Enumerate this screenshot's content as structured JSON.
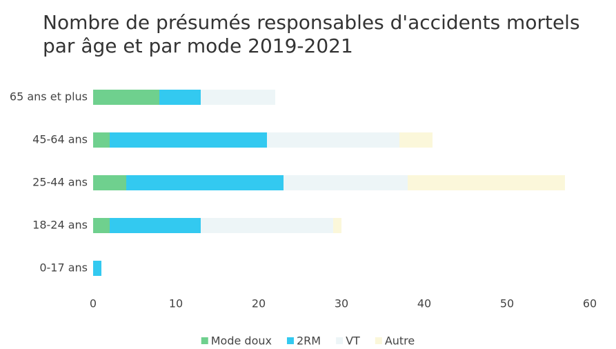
{
  "chart_data": {
    "type": "bar",
    "orientation": "horizontal",
    "stacked": true,
    "title": "Nombre de présumés responsables d'accidents mortels par âge et par mode 2019-2021",
    "categories": [
      "65 ans et plus",
      "45-64 ans",
      "25-44 ans",
      "18-24 ans",
      "0-17 ans"
    ],
    "series": [
      {
        "name": "Mode doux",
        "color": "#6fd08e",
        "values": [
          8,
          2,
          4,
          2,
          0
        ]
      },
      {
        "name": "2RM",
        "color": "#33c9f0",
        "values": [
          5,
          19,
          19,
          11,
          1
        ]
      },
      {
        "name": "VT",
        "color": "#edf5f7",
        "values": [
          9,
          16,
          15,
          16,
          0
        ]
      },
      {
        "name": "Autre",
        "color": "#fbf7da",
        "values": [
          0,
          4,
          19,
          1,
          0
        ]
      }
    ],
    "xlim": [
      0,
      60
    ],
    "xticks": [
      0,
      10,
      20,
      30,
      40,
      50,
      60
    ],
    "legend": "bottom"
  }
}
